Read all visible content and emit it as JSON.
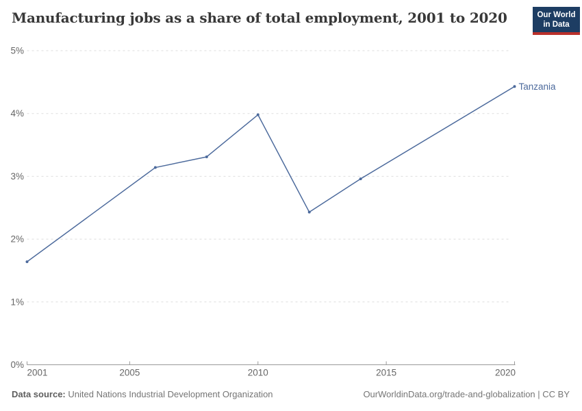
{
  "header": {
    "title": "Manufacturing jobs as a share of total employment, 2001 to 2020",
    "logo": {
      "line1": "Our World",
      "line2": "in Data"
    }
  },
  "chart_data": {
    "type": "line",
    "title": "Manufacturing jobs as a share of total employment, 2001 to 2020",
    "series": [
      {
        "name": "Tanzania",
        "color": "#4C6A9C",
        "points": [
          {
            "year": 2001,
            "value": 1.64
          },
          {
            "year": 2006,
            "value": 3.14
          },
          {
            "year": 2008,
            "value": 3.31
          },
          {
            "year": 2010,
            "value": 3.98
          },
          {
            "year": 2012,
            "value": 2.43
          },
          {
            "year": 2014,
            "value": 2.96
          },
          {
            "year": 2020,
            "value": 4.43
          }
        ]
      }
    ],
    "x": {
      "min": 2001,
      "max": 2020,
      "ticks": [
        2001,
        2005,
        2010,
        2015,
        2020
      ]
    },
    "y": {
      "min": 0,
      "max": 5,
      "ticks": [
        0,
        1,
        2,
        3,
        4,
        5
      ],
      "tick_suffix": "%"
    },
    "grid": "horizontal dashed",
    "legend_position": "end-of-line label"
  },
  "footer": {
    "source_label": "Data source:",
    "source_value": "United Nations Industrial Development Organization",
    "right_text": "OurWorldinData.org/trade-and-globalization | CC BY"
  },
  "colors": {
    "line": "#4C6A9C",
    "grid": "#dddddd",
    "axis": "#999999",
    "tick_label": "#666666",
    "title": "#383838",
    "footer": "#757575",
    "logo_bg": "#1d3d63",
    "logo_red": "#ba302b"
  }
}
